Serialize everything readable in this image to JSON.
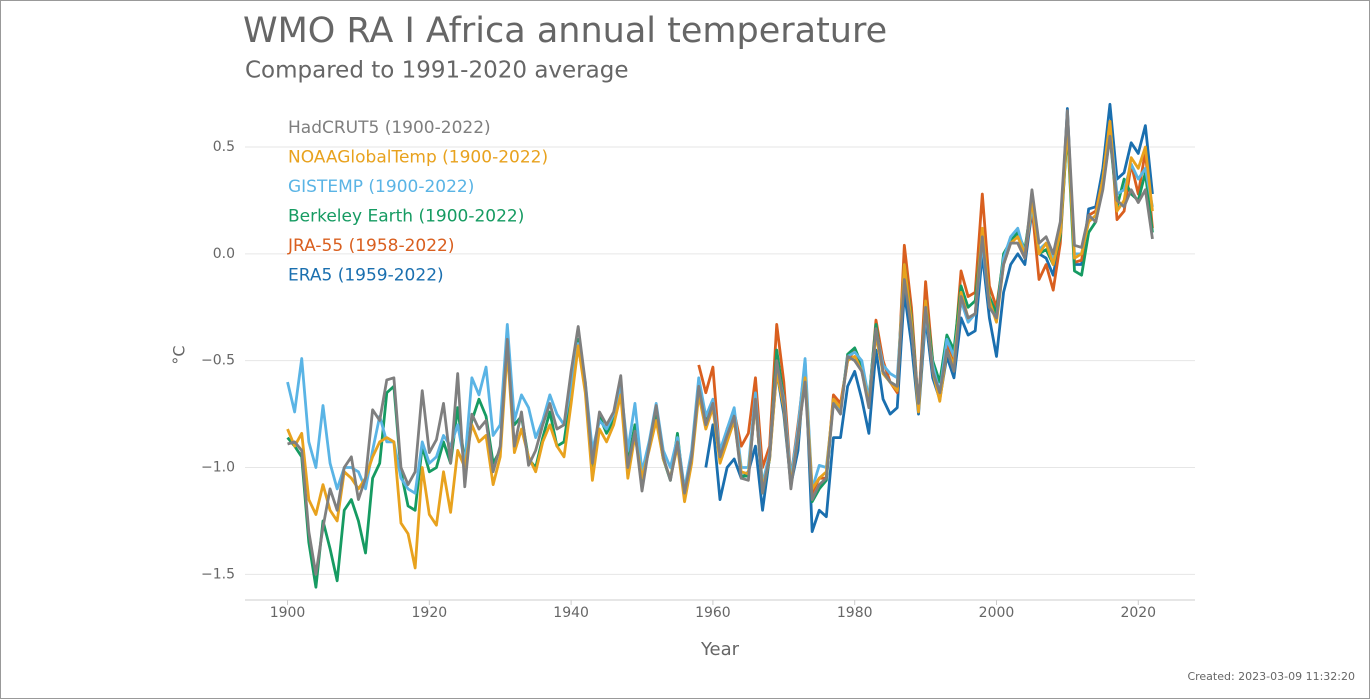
{
  "chart_data": {
    "type": "line",
    "title": "WMO RA I Africa annual temperature",
    "subtitle": "Compared to 1991-2020 average",
    "y_label": "°C",
    "x_label": "Year",
    "footer": "Created: 2023-03-09 11:32:20",
    "grid": true,
    "legend": "top-left",
    "xlim": [
      1894,
      2028
    ],
    "ylim": [
      -1.62,
      0.72
    ],
    "xticks": [
      1900,
      1920,
      1940,
      1960,
      1980,
      2000,
      2020
    ],
    "yticks": [
      {
        "value": -1.5,
        "label": "−1.5"
      },
      {
        "value": -1,
        "label": "−1.0"
      },
      {
        "value": -0.5,
        "label": "−0.5"
      },
      {
        "value": 0,
        "label": "0.0"
      },
      0.5
    ],
    "x": [
      1900,
      1901,
      1902,
      1903,
      1904,
      1905,
      1906,
      1907,
      1908,
      1909,
      1910,
      1911,
      1912,
      1913,
      1914,
      1915,
      1916,
      1917,
      1918,
      1919,
      1920,
      1921,
      1922,
      1923,
      1924,
      1925,
      1926,
      1927,
      1928,
      1929,
      1930,
      1931,
      1932,
      1933,
      1934,
      1935,
      1936,
      1937,
      1938,
      1939,
      1940,
      1941,
      1942,
      1943,
      1944,
      1945,
      1946,
      1947,
      1948,
      1949,
      1950,
      1951,
      1952,
      1953,
      1954,
      1955,
      1956,
      1957,
      1958,
      1959,
      1960,
      1961,
      1962,
      1963,
      1964,
      1965,
      1966,
      1967,
      1968,
      1969,
      1970,
      1971,
      1972,
      1973,
      1974,
      1975,
      1976,
      1977,
      1978,
      1979,
      1980,
      1981,
      1982,
      1983,
      1984,
      1985,
      1986,
      1987,
      1988,
      1989,
      1990,
      1991,
      1992,
      1993,
      1994,
      1995,
      1996,
      1997,
      1998,
      1999,
      2000,
      2001,
      2002,
      2003,
      2004,
      2005,
      2006,
      2007,
      2008,
      2009,
      2010,
      2011,
      2012,
      2013,
      2014,
      2015,
      2016,
      2017,
      2018,
      2019,
      2020,
      2021,
      2022
    ],
    "series": [
      {
        "name": "HadCRUT5 (1900-2022)",
        "color": "#7f7f7f",
        "values": [
          -0.89,
          -0.88,
          -0.92,
          -1.3,
          -1.5,
          -1.28,
          -1.1,
          -1.2,
          -1.0,
          -0.95,
          -1.15,
          -1.05,
          -0.73,
          -0.78,
          -0.59,
          -0.58,
          -1.0,
          -1.08,
          -1.02,
          -0.64,
          -0.93,
          -0.87,
          -0.7,
          -0.98,
          -0.56,
          -1.09,
          -0.75,
          -0.82,
          -0.78,
          -1.02,
          -0.9,
          -0.4,
          -0.9,
          -0.74,
          -0.99,
          -0.92,
          -0.8,
          -0.7,
          -0.82,
          -0.8,
          -0.55,
          -0.34,
          -0.6,
          -0.98,
          -0.74,
          -0.8,
          -0.74,
          -0.57,
          -1.0,
          -0.83,
          -1.11,
          -0.9,
          -0.71,
          -0.95,
          -1.06,
          -0.88,
          -1.12,
          -0.95,
          -0.62,
          -0.8,
          -0.7,
          -0.95,
          -0.85,
          -0.76,
          -1.05,
          -1.06,
          -0.68,
          -1.12,
          -0.95,
          -0.5,
          -0.7,
          -1.1,
          -0.85,
          -0.6,
          -1.15,
          -1.08,
          -1.05,
          -0.7,
          -0.75,
          -0.48,
          -0.5,
          -0.55,
          -0.72,
          -0.35,
          -0.55,
          -0.6,
          -0.62,
          -0.12,
          -0.35,
          -0.7,
          -0.25,
          -0.55,
          -0.65,
          -0.45,
          -0.55,
          -0.2,
          -0.3,
          -0.28,
          0.08,
          -0.25,
          -0.3,
          -0.05,
          0.05,
          0.05,
          -0.02,
          0.3,
          0.05,
          0.08,
          0.0,
          0.15,
          0.67,
          0.04,
          0.03,
          0.18,
          0.15,
          0.3,
          0.55,
          0.25,
          0.22,
          0.3,
          0.24,
          0.3,
          0.07
        ]
      },
      {
        "name": "NOAAGlobalTemp (1900-2022)",
        "color": "#e8a21e",
        "values": [
          -0.82,
          -0.9,
          -0.84,
          -1.15,
          -1.22,
          -1.08,
          -1.2,
          -1.25,
          -1.02,
          -1.05,
          -1.1,
          -1.05,
          -0.95,
          -0.88,
          -0.86,
          -0.88,
          -1.26,
          -1.31,
          -1.47,
          -1.0,
          -1.22,
          -1.27,
          -1.02,
          -1.21,
          -0.92,
          -1.0,
          -0.8,
          -0.88,
          -0.85,
          -1.08,
          -0.95,
          -0.45,
          -0.93,
          -0.82,
          -0.95,
          -1.02,
          -0.88,
          -0.8,
          -0.9,
          -0.95,
          -0.7,
          -0.43,
          -0.65,
          -1.06,
          -0.82,
          -0.88,
          -0.8,
          -0.66,
          -1.05,
          -0.85,
          -1.05,
          -0.92,
          -0.78,
          -0.96,
          -1.05,
          -0.9,
          -1.16,
          -0.98,
          -0.66,
          -0.82,
          -0.72,
          -0.98,
          -0.88,
          -0.78,
          -1.02,
          -1.03,
          -0.7,
          -1.1,
          -0.96,
          -0.55,
          -0.72,
          -1.08,
          -0.86,
          -0.58,
          -1.1,
          -1.05,
          -1.02,
          -0.68,
          -0.72,
          -0.5,
          -0.48,
          -0.55,
          -0.7,
          -0.38,
          -0.56,
          -0.6,
          -0.64,
          -0.05,
          -0.32,
          -0.74,
          -0.22,
          -0.55,
          -0.69,
          -0.45,
          -0.52,
          -0.18,
          -0.3,
          -0.28,
          0.12,
          -0.22,
          -0.32,
          -0.05,
          0.05,
          0.08,
          0.0,
          0.25,
          0.0,
          0.05,
          -0.05,
          0.1,
          0.6,
          -0.02,
          0.0,
          0.15,
          0.18,
          0.35,
          0.62,
          0.2,
          0.25,
          0.45,
          0.4,
          0.5,
          0.2
        ]
      },
      {
        "name": "GISTEMP (1900-2022)",
        "color": "#5ab4e5",
        "values": [
          -0.6,
          -0.74,
          -0.49,
          -0.88,
          -1.0,
          -0.71,
          -0.98,
          -1.1,
          -1.0,
          -1.0,
          -1.02,
          -1.1,
          -0.92,
          -0.76,
          -0.88,
          -0.88,
          -1.05,
          -1.1,
          -1.12,
          -0.88,
          -0.98,
          -0.95,
          -0.85,
          -0.9,
          -0.8,
          -0.98,
          -0.58,
          -0.66,
          -0.53,
          -0.85,
          -0.8,
          -0.33,
          -0.78,
          -0.66,
          -0.72,
          -0.86,
          -0.78,
          -0.66,
          -0.75,
          -0.8,
          -0.62,
          -0.42,
          -0.6,
          -0.92,
          -0.78,
          -0.82,
          -0.75,
          -0.62,
          -0.92,
          -0.7,
          -1.02,
          -0.88,
          -0.7,
          -0.92,
          -1.0,
          -0.86,
          -1.1,
          -0.92,
          -0.58,
          -0.76,
          -0.68,
          -0.92,
          -0.82,
          -0.72,
          -1.0,
          -1.0,
          -0.65,
          -1.08,
          -0.93,
          -0.52,
          -0.68,
          -1.05,
          -0.82,
          -0.49,
          -1.1,
          -0.99,
          -1.0,
          -0.7,
          -0.74,
          -0.48,
          -0.46,
          -0.5,
          -0.68,
          -0.36,
          -0.52,
          -0.56,
          -0.58,
          -0.08,
          -0.35,
          -0.7,
          -0.28,
          -0.52,
          -0.65,
          -0.4,
          -0.48,
          -0.22,
          -0.32,
          -0.28,
          0.05,
          -0.25,
          -0.3,
          -0.02,
          0.08,
          0.12,
          0.0,
          0.22,
          0.02,
          0.05,
          -0.02,
          0.1,
          0.62,
          0.0,
          0.0,
          0.15,
          0.18,
          0.35,
          0.6,
          0.28,
          0.3,
          0.42,
          0.35,
          0.4,
          0.22
        ]
      },
      {
        "name": "Berkeley Earth (1900-2022)",
        "color": "#169b62",
        "values": [
          -0.86,
          -0.9,
          -0.95,
          -1.35,
          -1.56,
          -1.25,
          -1.38,
          -1.53,
          -1.2,
          -1.15,
          -1.25,
          -1.4,
          -1.05,
          -0.98,
          -0.65,
          -0.62,
          -1.02,
          -1.18,
          -1.2,
          -0.9,
          -1.02,
          -1.0,
          -0.88,
          -0.98,
          -0.72,
          -0.98,
          -0.78,
          -0.68,
          -0.76,
          -0.98,
          -0.92,
          -0.38,
          -0.8,
          -0.76,
          -0.96,
          -1.0,
          -0.86,
          -0.74,
          -0.9,
          -0.88,
          -0.65,
          -0.4,
          -0.62,
          -1.0,
          -0.76,
          -0.84,
          -0.78,
          -0.62,
          -0.98,
          -0.8,
          -1.08,
          -0.9,
          -0.76,
          -0.96,
          -1.06,
          -0.84,
          -1.14,
          -0.96,
          -0.6,
          -0.78,
          -0.7,
          -0.96,
          -0.86,
          -0.74,
          -1.04,
          -1.04,
          -0.68,
          -1.12,
          -0.96,
          -0.45,
          -0.68,
          -1.08,
          -0.84,
          -0.55,
          -1.16,
          -1.1,
          -1.06,
          -0.68,
          -0.74,
          -0.47,
          -0.44,
          -0.52,
          -0.68,
          -0.33,
          -0.56,
          -0.6,
          -0.62,
          -0.05,
          -0.3,
          -0.72,
          -0.22,
          -0.5,
          -0.6,
          -0.38,
          -0.45,
          -0.15,
          -0.25,
          -0.22,
          0.1,
          -0.2,
          -0.28,
          0.0,
          0.06,
          0.1,
          0.02,
          0.25,
          0.0,
          0.02,
          -0.05,
          0.08,
          0.58,
          -0.08,
          -0.1,
          0.1,
          0.15,
          0.32,
          0.55,
          0.22,
          0.35,
          0.28,
          0.25,
          0.38,
          0.1
        ]
      },
      {
        "name": "JRA-55 (1958-2022)",
        "color": "#d95f1f",
        "values": [
          null,
          null,
          null,
          null,
          null,
          null,
          null,
          null,
          null,
          null,
          null,
          null,
          null,
          null,
          null,
          null,
          null,
          null,
          null,
          null,
          null,
          null,
          null,
          null,
          null,
          null,
          null,
          null,
          null,
          null,
          null,
          null,
          null,
          null,
          null,
          null,
          null,
          null,
          null,
          null,
          null,
          null,
          null,
          null,
          null,
          null,
          null,
          null,
          null,
          null,
          null,
          null,
          null,
          null,
          null,
          null,
          null,
          null,
          -0.52,
          -0.65,
          -0.53,
          -0.95,
          -0.82,
          -0.74,
          -0.9,
          -0.84,
          -0.58,
          -1.0,
          -0.9,
          -0.33,
          -0.6,
          -1.05,
          -0.8,
          -0.52,
          -1.12,
          -1.05,
          -1.05,
          -0.66,
          -0.7,
          -0.5,
          -0.45,
          -0.52,
          -0.7,
          -0.31,
          -0.5,
          -0.6,
          -0.65,
          0.04,
          -0.25,
          -0.72,
          -0.13,
          -0.5,
          -0.68,
          -0.42,
          -0.5,
          -0.08,
          -0.2,
          -0.18,
          0.28,
          -0.15,
          -0.25,
          -0.02,
          0.05,
          0.05,
          -0.02,
          0.22,
          -0.12,
          -0.05,
          -0.17,
          0.05,
          0.6,
          -0.04,
          -0.03,
          0.18,
          0.2,
          0.35,
          0.62,
          0.16,
          0.2,
          0.42,
          0.28,
          0.48,
          0.12
        ]
      },
      {
        "name": "ERA5 (1959-2022)",
        "color": "#1a6faf",
        "values": [
          null,
          null,
          null,
          null,
          null,
          null,
          null,
          null,
          null,
          null,
          null,
          null,
          null,
          null,
          null,
          null,
          null,
          null,
          null,
          null,
          null,
          null,
          null,
          null,
          null,
          null,
          null,
          null,
          null,
          null,
          null,
          null,
          null,
          null,
          null,
          null,
          null,
          null,
          null,
          null,
          null,
          null,
          null,
          null,
          null,
          null,
          null,
          null,
          null,
          null,
          null,
          null,
          null,
          null,
          null,
          null,
          null,
          null,
          null,
          -1.0,
          -0.8,
          -1.15,
          -1.0,
          -0.96,
          -1.05,
          -1.02,
          -0.9,
          -1.2,
          -0.95,
          -0.55,
          -0.75,
          -1.08,
          -0.92,
          -0.5,
          -1.3,
          -1.2,
          -1.23,
          -0.86,
          -0.86,
          -0.62,
          -0.55,
          -0.68,
          -0.84,
          -0.45,
          -0.68,
          -0.75,
          -0.72,
          -0.18,
          -0.42,
          -0.75,
          -0.3,
          -0.58,
          -0.68,
          -0.48,
          -0.58,
          -0.3,
          -0.38,
          -0.36,
          0.0,
          -0.3,
          -0.48,
          -0.18,
          -0.05,
          0.0,
          -0.05,
          0.2,
          0.0,
          -0.02,
          -0.1,
          0.08,
          0.68,
          -0.05,
          -0.05,
          0.21,
          0.22,
          0.4,
          0.7,
          0.35,
          0.38,
          0.52,
          0.47,
          0.6,
          0.28
        ]
      }
    ]
  }
}
